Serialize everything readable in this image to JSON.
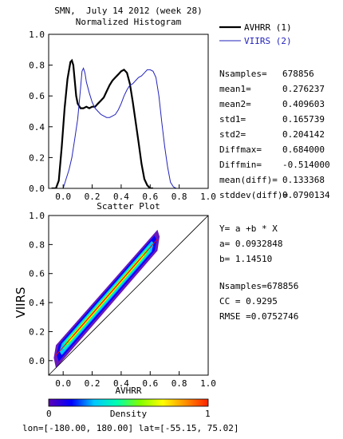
{
  "header": {
    "line1": "SMN,  July 14 2012 (week 28)",
    "line2": "Normalized Histogram"
  },
  "legend": [
    {
      "label": "AVHRR (1)",
      "color": "#000000",
      "text_color": "#000000"
    },
    {
      "label": "VIIRS (2)",
      "color": "#2222bb",
      "text_color": "#2222bb"
    }
  ],
  "stats": [
    {
      "label": "Nsamples=",
      "value": "678856"
    },
    {
      "label": "mean1=",
      "value": "0.276237"
    },
    {
      "label": "mean2=",
      "value": "0.409603"
    },
    {
      "label": "std1=",
      "value": "0.165739"
    },
    {
      "label": "std2=",
      "value": "0.204142"
    },
    {
      "label": "Diffmax=",
      "value": "0.684000"
    },
    {
      "label": "Diffmin=",
      "value": "-0.514000"
    },
    {
      "label": "mean(diff)=",
      "value": "0.133368"
    },
    {
      "label": "stddev(diff)=",
      "value": "0.0790134"
    }
  ],
  "regression": {
    "equation": "Y= a +b * X",
    "a_text": "a= 0.0932848",
    "b_text": "b= 1.14510",
    "nsamples_text": "Nsamples=678856",
    "cc_text": "CC = 0.9295",
    "rmse_text": "RMSE =0.0752746"
  },
  "colorbar": {
    "label": "Density",
    "min_label": "0",
    "max_label": "1",
    "colors": [
      "#5a00b4",
      "#0000ff",
      "#00c8ff",
      "#00ffb0",
      "#80ff00",
      "#ffff00",
      "#ff9000",
      "#ff2000"
    ]
  },
  "footer": "lon=[-180.00, 180.00] lat=[-55.15, 75.02]",
  "chart_data": [
    {
      "type": "line",
      "title": "Normalized Histogram",
      "xlim": [
        -0.1,
        1.0
      ],
      "ylim": [
        0.0,
        1.0
      ],
      "xticks": [
        "0.0",
        "0.2",
        "0.4",
        "0.6",
        "0.8",
        "1.0"
      ],
      "yticks": [
        "0.0",
        "0.2",
        "0.4",
        "0.6",
        "0.8",
        "1.0"
      ],
      "series": [
        {
          "name": "AVHRR (1)",
          "color": "#000000",
          "points": [
            [
              -0.08,
              0.0
            ],
            [
              -0.05,
              0.0
            ],
            [
              -0.03,
              0.05
            ],
            [
              -0.01,
              0.27
            ],
            [
              0.01,
              0.52
            ],
            [
              0.03,
              0.71
            ],
            [
              0.05,
              0.82
            ],
            [
              0.06,
              0.83
            ],
            [
              0.07,
              0.8
            ],
            [
              0.08,
              0.7
            ],
            [
              0.09,
              0.6
            ],
            [
              0.1,
              0.55
            ],
            [
              0.12,
              0.52
            ],
            [
              0.14,
              0.52
            ],
            [
              0.16,
              0.53
            ],
            [
              0.18,
              0.52
            ],
            [
              0.2,
              0.53
            ],
            [
              0.22,
              0.53
            ],
            [
              0.24,
              0.55
            ],
            [
              0.26,
              0.57
            ],
            [
              0.28,
              0.59
            ],
            [
              0.3,
              0.63
            ],
            [
              0.32,
              0.67
            ],
            [
              0.34,
              0.7
            ],
            [
              0.36,
              0.72
            ],
            [
              0.38,
              0.74
            ],
            [
              0.4,
              0.76
            ],
            [
              0.42,
              0.77
            ],
            [
              0.44,
              0.75
            ],
            [
              0.46,
              0.68
            ],
            [
              0.48,
              0.56
            ],
            [
              0.5,
              0.43
            ],
            [
              0.52,
              0.3
            ],
            [
              0.54,
              0.16
            ],
            [
              0.56,
              0.06
            ],
            [
              0.58,
              0.02
            ],
            [
              0.6,
              0.0
            ],
            [
              0.62,
              0.0
            ]
          ]
        },
        {
          "name": "VIIRS (2)",
          "color": "#2222bb",
          "points": [
            [
              -0.08,
              0.0
            ],
            [
              0.0,
              0.0
            ],
            [
              0.02,
              0.06
            ],
            [
              0.04,
              0.12
            ],
            [
              0.06,
              0.2
            ],
            [
              0.08,
              0.32
            ],
            [
              0.1,
              0.45
            ],
            [
              0.12,
              0.65
            ],
            [
              0.13,
              0.76
            ],
            [
              0.14,
              0.78
            ],
            [
              0.15,
              0.75
            ],
            [
              0.16,
              0.69
            ],
            [
              0.18,
              0.62
            ],
            [
              0.2,
              0.56
            ],
            [
              0.22,
              0.52
            ],
            [
              0.24,
              0.5
            ],
            [
              0.26,
              0.48
            ],
            [
              0.28,
              0.47
            ],
            [
              0.3,
              0.46
            ],
            [
              0.32,
              0.46
            ],
            [
              0.34,
              0.47
            ],
            [
              0.36,
              0.48
            ],
            [
              0.38,
              0.51
            ],
            [
              0.4,
              0.55
            ],
            [
              0.42,
              0.6
            ],
            [
              0.44,
              0.64
            ],
            [
              0.46,
              0.67
            ],
            [
              0.48,
              0.68
            ],
            [
              0.5,
              0.7
            ],
            [
              0.52,
              0.72
            ],
            [
              0.54,
              0.73
            ],
            [
              0.56,
              0.75
            ],
            [
              0.58,
              0.77
            ],
            [
              0.6,
              0.77
            ],
            [
              0.62,
              0.76
            ],
            [
              0.64,
              0.72
            ],
            [
              0.66,
              0.6
            ],
            [
              0.68,
              0.43
            ],
            [
              0.7,
              0.27
            ],
            [
              0.72,
              0.14
            ],
            [
              0.74,
              0.04
            ],
            [
              0.76,
              0.01
            ],
            [
              0.78,
              0.0
            ],
            [
              0.8,
              0.0
            ]
          ]
        }
      ]
    },
    {
      "type": "scatter",
      "title": "Scatter Plot",
      "xlabel": "AVHRR",
      "ylabel": "VIIRS",
      "xlim": [
        -0.1,
        1.0
      ],
      "ylim": [
        -0.1,
        1.0
      ],
      "xticks": [
        "0.0",
        "0.2",
        "0.4",
        "0.6",
        "0.8",
        "1.0"
      ],
      "yticks": [
        "0.0",
        "0.2",
        "0.4",
        "0.6",
        "0.8",
        "1.0"
      ],
      "regression_line": {
        "a": 0.0932848,
        "b": 1.1451,
        "x_range": [
          -0.05,
          0.65
        ]
      },
      "identity_line": true,
      "density_scale": [
        0,
        1
      ]
    }
  ]
}
